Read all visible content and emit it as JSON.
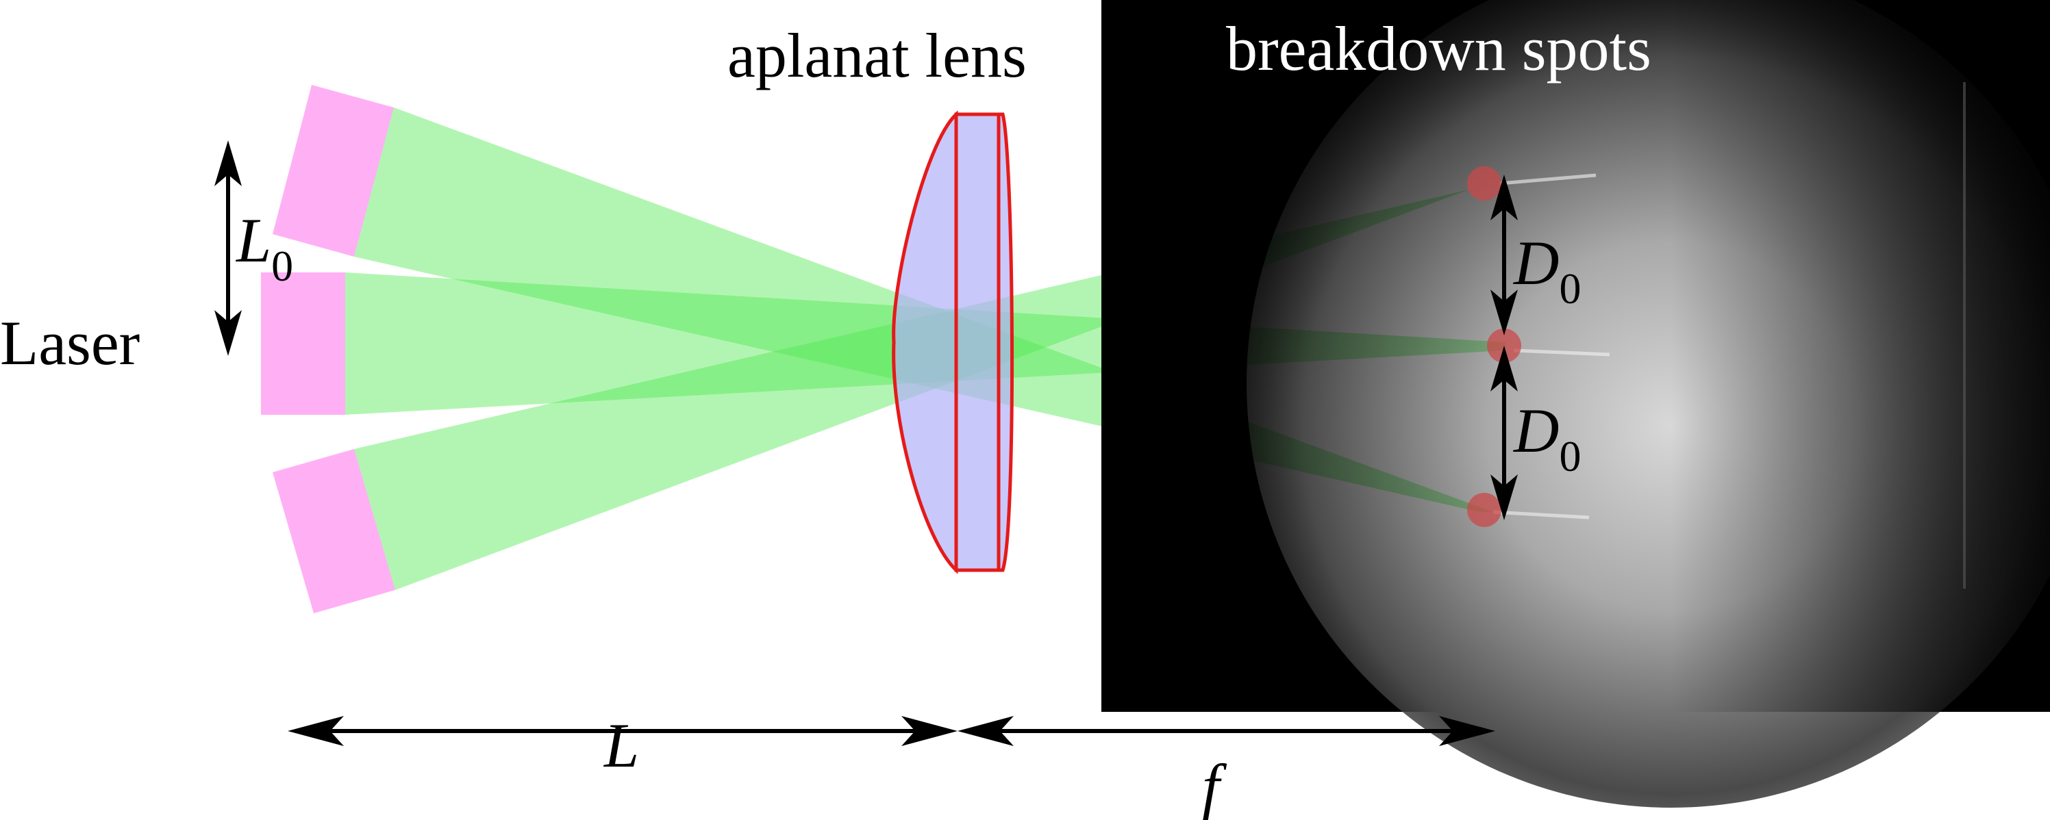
{
  "labels": {
    "laser": "Laser",
    "aplanat_lens": "aplanat lens",
    "breakdown_spots": "breakdown spots",
    "beam_separation": {
      "base": "L",
      "sub": "0"
    },
    "spot_spacing_upper": {
      "base": "D",
      "sub": "0"
    },
    "spot_spacing_lower": {
      "base": "D",
      "sub": "0"
    },
    "distance_laser_to_lens": "L",
    "focal_length": "f"
  },
  "colors": {
    "laser_block": "#ffb0f5",
    "beam": "#54e854",
    "lens_fill": "#b0b0f8",
    "lens_outline": "#e51a1a",
    "breakdown_spot": "#c94848",
    "arrow": "#000000",
    "photo_background": "#000000",
    "photo_label": "#ffffff"
  },
  "beam_count": 3,
  "spot_count": 3
}
